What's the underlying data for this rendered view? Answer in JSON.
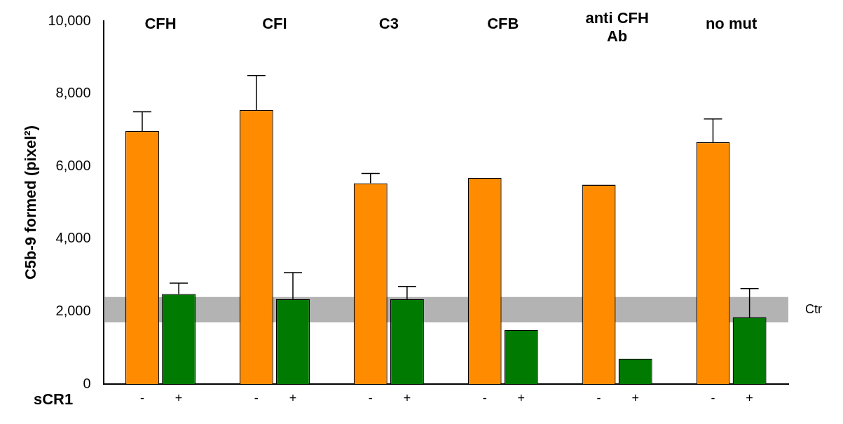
{
  "chart_data": {
    "type": "bar",
    "ylabel": "C5b-9 formed (pixel²)",
    "xlabel": "sCR1",
    "categories": [
      "CFH",
      "CFI",
      "C3",
      "CFB",
      "anti CFH Ab",
      "no mut"
    ],
    "series": [
      {
        "name": "-",
        "color": "#ff8c00",
        "values": [
          6970,
          7550,
          5530,
          5680,
          5490,
          6660
        ],
        "errors": [
          [
            6970,
            7500
          ],
          [
            7550,
            8500
          ],
          [
            5530,
            5800
          ],
          null,
          null,
          [
            6660,
            7300
          ]
        ]
      },
      {
        "name": "+",
        "color": "#007a00",
        "values": [
          2480,
          2340,
          2340,
          1490,
          700,
          1840
        ],
        "errors": [
          [
            2480,
            2780
          ],
          [
            2340,
            3070
          ],
          [
            2340,
            2690
          ],
          null,
          null,
          [
            1840,
            2630
          ]
        ]
      }
    ],
    "ylim": [
      0,
      10000
    ],
    "yticks": [
      {
        "value": 0,
        "label": "0"
      },
      {
        "value": 2000,
        "label": "2,000"
      },
      {
        "value": 4000,
        "label": "4,000"
      },
      {
        "value": 6000,
        "label": "6,000"
      },
      {
        "value": 8000,
        "label": "8,000"
      },
      {
        "value": 10000,
        "label": "10,000"
      }
    ],
    "bands": [
      {
        "axis": "y",
        "from": 1700,
        "to": 2400,
        "label": "Ctr",
        "color": "#b3b3b3"
      }
    ],
    "grid": false,
    "legend": false
  }
}
